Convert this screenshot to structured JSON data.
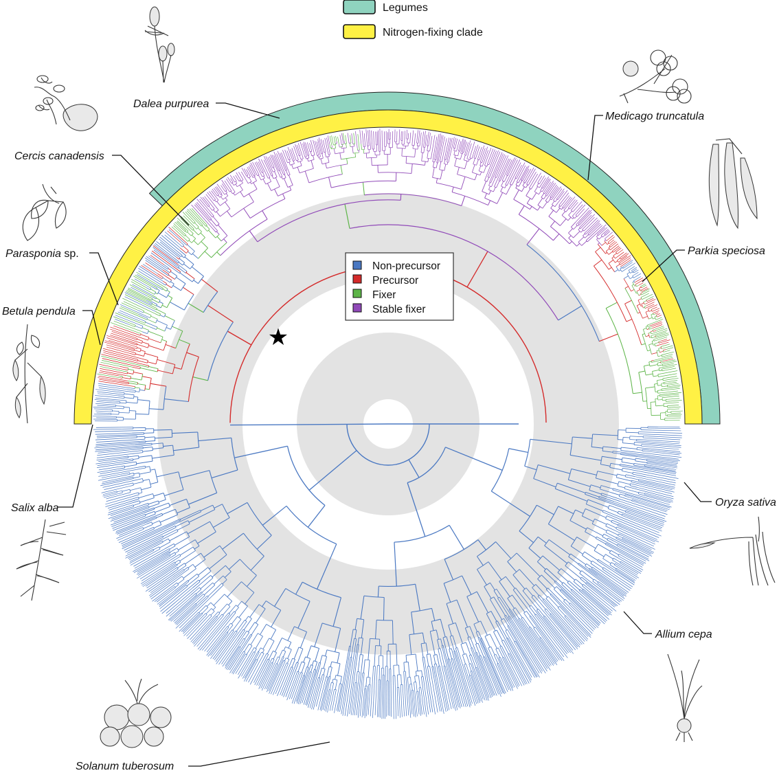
{
  "colors": {
    "non_precursor": "#4a78c2",
    "precursor": "#d42a2a",
    "fixer": "#5db548",
    "stable_fixer": "#9049b8",
    "legumes_band": "#8fd3bf",
    "nitrogen_band": "#fff145",
    "age_band": "#e3e3e3"
  },
  "top_key": [
    {
      "label": "Legumes",
      "color": "#8fd3bf"
    },
    {
      "label": "Nitrogen-fixing clade",
      "color": "#fff145"
    }
  ],
  "legend": [
    {
      "label": "Non-precursor",
      "color": "#4a78c2"
    },
    {
      "label": "Precursor",
      "color": "#d42a2a"
    },
    {
      "label": "Fixer",
      "color": "#5db548"
    },
    {
      "label": "Stable fixer",
      "color": "#9049b8"
    }
  ],
  "species": [
    {
      "name": "Dalea purpurea",
      "italic_part": "Dalea purpurea",
      "suffix": ""
    },
    {
      "name": "Medicago truncatula",
      "italic_part": "Medicago truncatula",
      "suffix": ""
    },
    {
      "name": "Cercis canadensis",
      "italic_part": "Cercis canadensis",
      "suffix": ""
    },
    {
      "name": "Parkia speciosa",
      "italic_part": "Parkia speciosa",
      "suffix": ""
    },
    {
      "name": "Parasponia sp.",
      "italic_part": "Parasponia",
      "suffix": " sp."
    },
    {
      "name": "Betula pendula",
      "italic_part": "Betula pendula",
      "suffix": ""
    },
    {
      "name": "Salix alba",
      "italic_part": "Salix alba",
      "suffix": ""
    },
    {
      "name": "Oryza sativa",
      "italic_part": "Oryza sativa",
      "suffix": ""
    },
    {
      "name": "Allium cepa",
      "italic_part": "Allium cepa",
      "suffix": ""
    },
    {
      "name": "Solanum tuberosum",
      "italic_part": "Solanum tuberosum",
      "suffix": ""
    }
  ],
  "icons": {
    "origin_marker": "star-icon"
  }
}
